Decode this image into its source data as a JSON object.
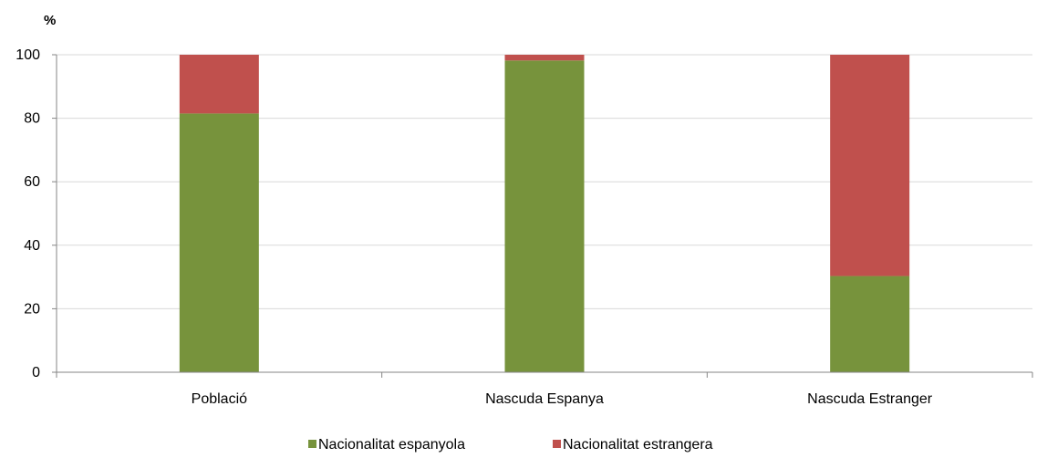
{
  "chart_data": {
    "type": "bar",
    "stacked": true,
    "unit_label": "%",
    "categories": [
      "Població",
      "Nascuda Espanya",
      "Nascuda Estranger"
    ],
    "series": [
      {
        "name": "Nacionalitat espanyola",
        "color": "#77933c",
        "values": [
          81.5,
          98.2,
          30.3
        ]
      },
      {
        "name": "Nacionalitat estrangera",
        "color": "#c0504d",
        "values": [
          18.5,
          1.8,
          69.7
        ]
      }
    ],
    "ylim": [
      0,
      100
    ],
    "yticks": [
      0,
      20,
      40,
      60,
      80,
      100
    ],
    "grid": true,
    "legend_position": "bottom"
  }
}
